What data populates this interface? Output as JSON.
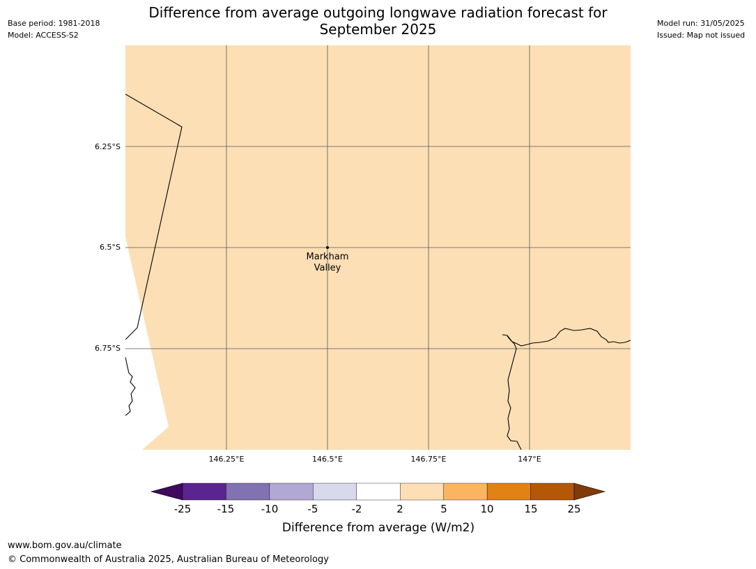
{
  "header": {
    "title_line1": "Difference from average outgoing longwave radiation forecast for",
    "title_line2": "September 2025",
    "base_period": "Base period: 1981-2018",
    "model": "Model: ACCESS-S2",
    "model_run": "Model run: 31/05/2025",
    "issued": "Issued: Map not issued"
  },
  "map": {
    "fill_color": "#fddfb6",
    "land_outline_color": "#000000",
    "grid_color": "#555555",
    "lat_ticks": [
      "6.25°S",
      "6.5°S",
      "6.75°S"
    ],
    "lon_ticks": [
      "146.25°E",
      "146.5°E",
      "146.75°E",
      "147°E"
    ],
    "place": {
      "name_line1": "Markham",
      "name_line2": "Valley"
    }
  },
  "colorbar": {
    "title": "Difference from average (W/m2)",
    "tick_labels": [
      "-25",
      "-15",
      "-10",
      "-5",
      "-2",
      "2",
      "5",
      "10",
      "15",
      "25"
    ],
    "colors": [
      "#3f0a5e",
      "#5a2590",
      "#8172b1",
      "#b1a8d3",
      "#d9d9ec",
      "#ffffff",
      "#fddfb6",
      "#fbb561",
      "#e08214",
      "#b25807",
      "#7f3b08"
    ]
  },
  "footer": {
    "url": "www.bom.gov.au/climate",
    "copyright": "© Commonwealth of Australia 2025, Australian Bureau of Meteorology"
  }
}
